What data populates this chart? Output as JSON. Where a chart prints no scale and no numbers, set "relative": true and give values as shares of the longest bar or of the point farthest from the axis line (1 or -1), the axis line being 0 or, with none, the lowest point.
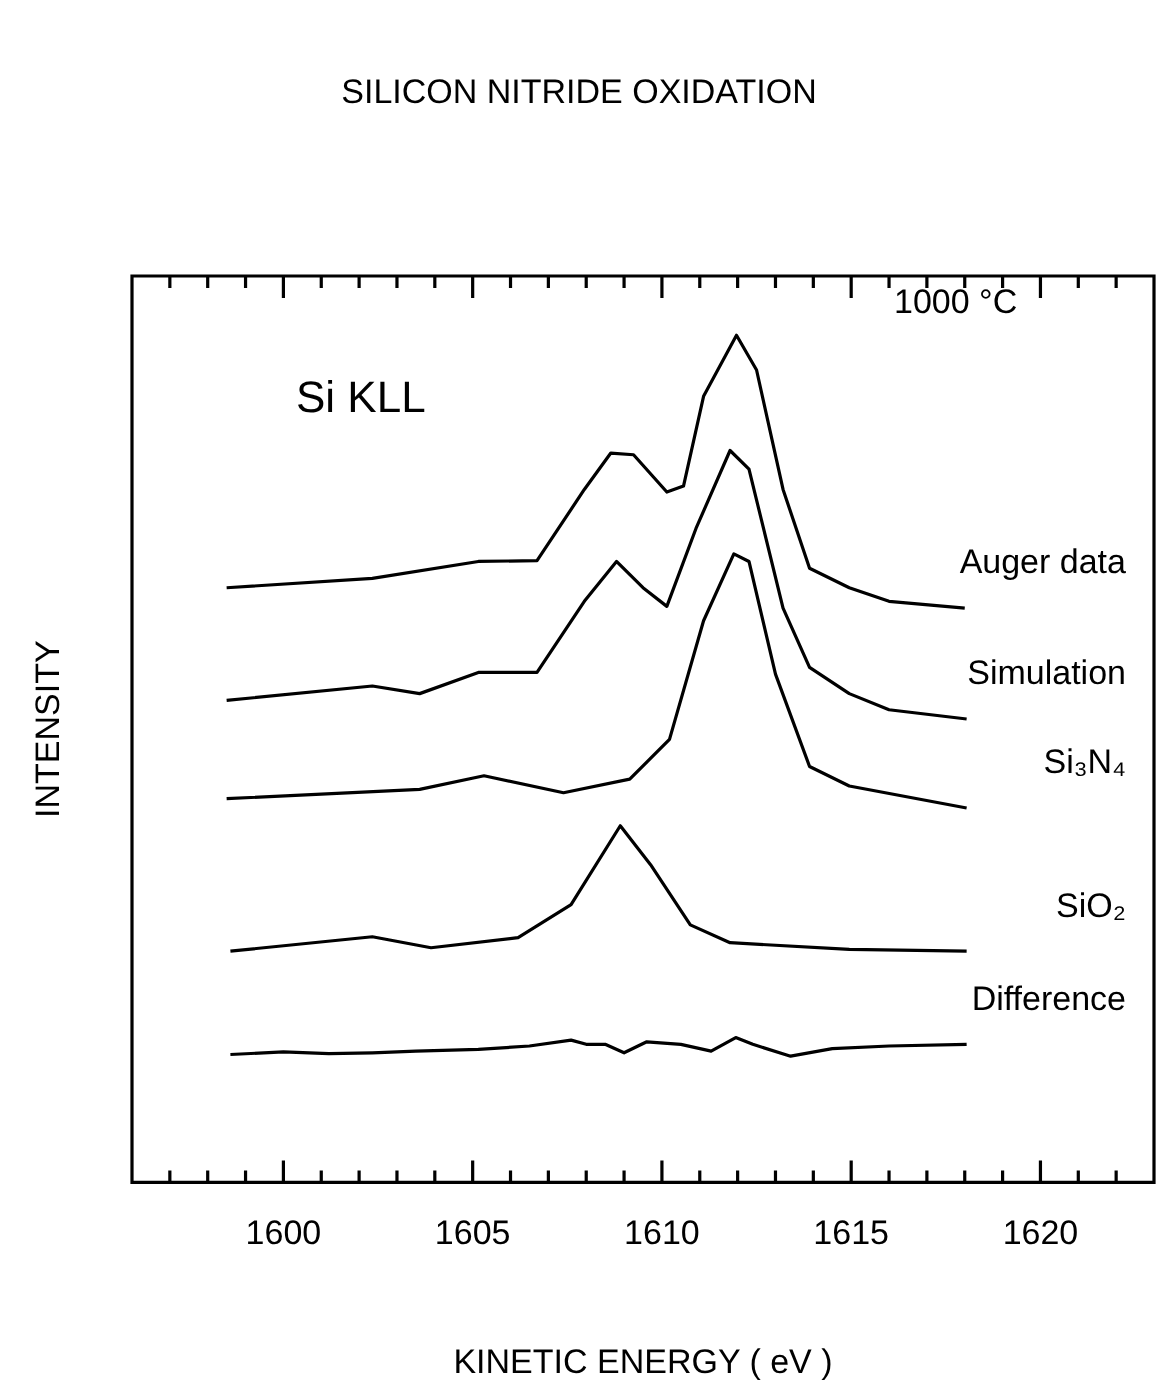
{
  "chart_data": {
    "type": "line",
    "title": "SILICON NITRIDE OXIDATION",
    "xlabel": "KINETIC ENERGY ( eV )",
    "ylabel": "INTENSITY",
    "relative": true,
    "marker": "none",
    "line_style": "solid",
    "grid": false,
    "legend": false,
    "annotations": [
      "Si KLL",
      "1000 °C"
    ],
    "xlim": [
      1596,
      1623
    ],
    "xticks": [
      {
        "value": 1597,
        "label": null
      },
      {
        "value": 1598,
        "label": null
      },
      {
        "value": 1599,
        "label": null
      },
      1600,
      {
        "value": 1601,
        "label": null
      },
      {
        "value": 1602,
        "label": null
      },
      {
        "value": 1603,
        "label": null
      },
      {
        "value": 1604,
        "label": null
      },
      1605,
      {
        "value": 1606,
        "label": null
      },
      {
        "value": 1607,
        "label": null
      },
      {
        "value": 1608,
        "label": null
      },
      {
        "value": 1609,
        "label": null
      },
      1610,
      {
        "value": 1611,
        "label": null
      },
      {
        "value": 1612,
        "label": null
      },
      {
        "value": 1613,
        "label": null
      },
      {
        "value": 1614,
        "label": null
      },
      1615,
      {
        "value": 1616,
        "label": null
      },
      {
        "value": 1617,
        "label": null
      },
      {
        "value": 1618,
        "label": null
      },
      {
        "value": 1619,
        "label": null
      },
      1620,
      {
        "value": 1621,
        "label": null
      },
      {
        "value": 1622,
        "label": null
      }
    ],
    "series": [
      {
        "name": "Auger data",
        "color": "#000000",
        "x": [
          1598.5,
          1602.35,
          1605.15,
          1606.7,
          1607.95,
          1608.65,
          1609.25,
          1610.13,
          1610.57,
          1611.1,
          1611.97,
          1612.5,
          1613.2,
          1613.9,
          1614.95,
          1616.0,
          1618.0
        ],
        "values": [
          0.702,
          0.713,
          0.733,
          0.734,
          0.818,
          0.861,
          0.859,
          0.815,
          0.822,
          0.928,
          1,
          0.959,
          0.818,
          0.725,
          0.702,
          0.686,
          0.678
        ]
      },
      {
        "name": "Simulation",
        "color": "#000000",
        "x": [
          1598.5,
          1602.35,
          1603.6,
          1605.15,
          1606.7,
          1607.95,
          1608.8,
          1609.5,
          1610.13,
          1610.9,
          1611.8,
          1612.3,
          1613.2,
          1613.9,
          1614.95,
          1616.0,
          1618.05
        ],
        "values": [
          0.569,
          0.586,
          0.577,
          0.602,
          0.602,
          0.686,
          0.733,
          0.702,
          0.68,
          0.772,
          0.864,
          0.842,
          0.678,
          0.608,
          0.577,
          0.558,
          0.547
        ]
      },
      {
        "name": "Si₃N₄",
        "color": "#000000",
        "x": [
          1598.5,
          1603.6,
          1605.3,
          1607.4,
          1609.15,
          1610.2,
          1611.1,
          1611.9,
          1612.3,
          1613.0,
          1613.9,
          1614.95,
          1618.05
        ],
        "values": [
          0.453,
          0.464,
          0.48,
          0.46,
          0.476,
          0.523,
          0.663,
          0.742,
          0.733,
          0.6,
          0.491,
          0.468,
          0.442
        ]
      },
      {
        "name": "SiO₂",
        "color": "#000000",
        "x": [
          1598.6,
          1602.35,
          1603.9,
          1606.2,
          1607.6,
          1608.9,
          1609.7,
          1610.75,
          1611.8,
          1614.95,
          1618.05
        ],
        "values": [
          0.273,
          0.29,
          0.277,
          0.289,
          0.328,
          0.421,
          0.375,
          0.304,
          0.283,
          0.275,
          0.273
        ]
      },
      {
        "name": "Difference",
        "color": "#000000",
        "x": [
          1598.6,
          1600.0,
          1601.2,
          1602.35,
          1603.5,
          1605.15,
          1606.5,
          1607.6,
          1608.0,
          1608.5,
          1609.0,
          1609.6,
          1610.5,
          1611.3,
          1611.95,
          1612.4,
          1613.4,
          1614.5,
          1616.0,
          1618.05
        ],
        "values": [
          0.151,
          0.154,
          0.152,
          0.153,
          0.155,
          0.157,
          0.161,
          0.168,
          0.163,
          0.163,
          0.153,
          0.166,
          0.163,
          0.155,
          0.171,
          0.163,
          0.149,
          0.158,
          0.161,
          0.163
        ]
      }
    ]
  }
}
